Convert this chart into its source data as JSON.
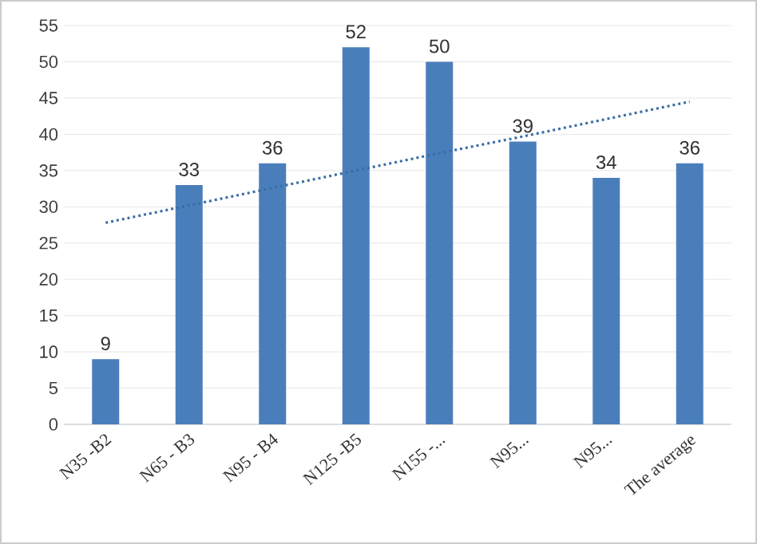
{
  "chart_data": {
    "type": "bar",
    "categories": [
      "N35 -B2",
      "N65 - B3",
      "N95 - B4",
      "N125 -B5",
      "N155 -...",
      "N95...",
      "N95...",
      "The average"
    ],
    "series": [
      {
        "color": "#4a7ebb",
        "values": [
          9,
          33,
          36,
          52,
          50,
          39,
          34,
          36
        ],
        "value_labels": [
          "9",
          "33",
          "36",
          "52",
          "50",
          "39",
          "34",
          "36"
        ]
      },
      {
        "type": "line",
        "color": "#3a6ea5",
        "line_style": "dotted",
        "values": [
          27.8,
          30.2,
          32.6,
          35.0,
          37.4,
          39.7,
          42.1,
          44.5
        ]
      }
    ],
    "ylim": [
      0,
      55
    ],
    "yticks": [
      0,
      5,
      10,
      15,
      20,
      25,
      30,
      35,
      40,
      45,
      50,
      55
    ],
    "grid": "y"
  }
}
